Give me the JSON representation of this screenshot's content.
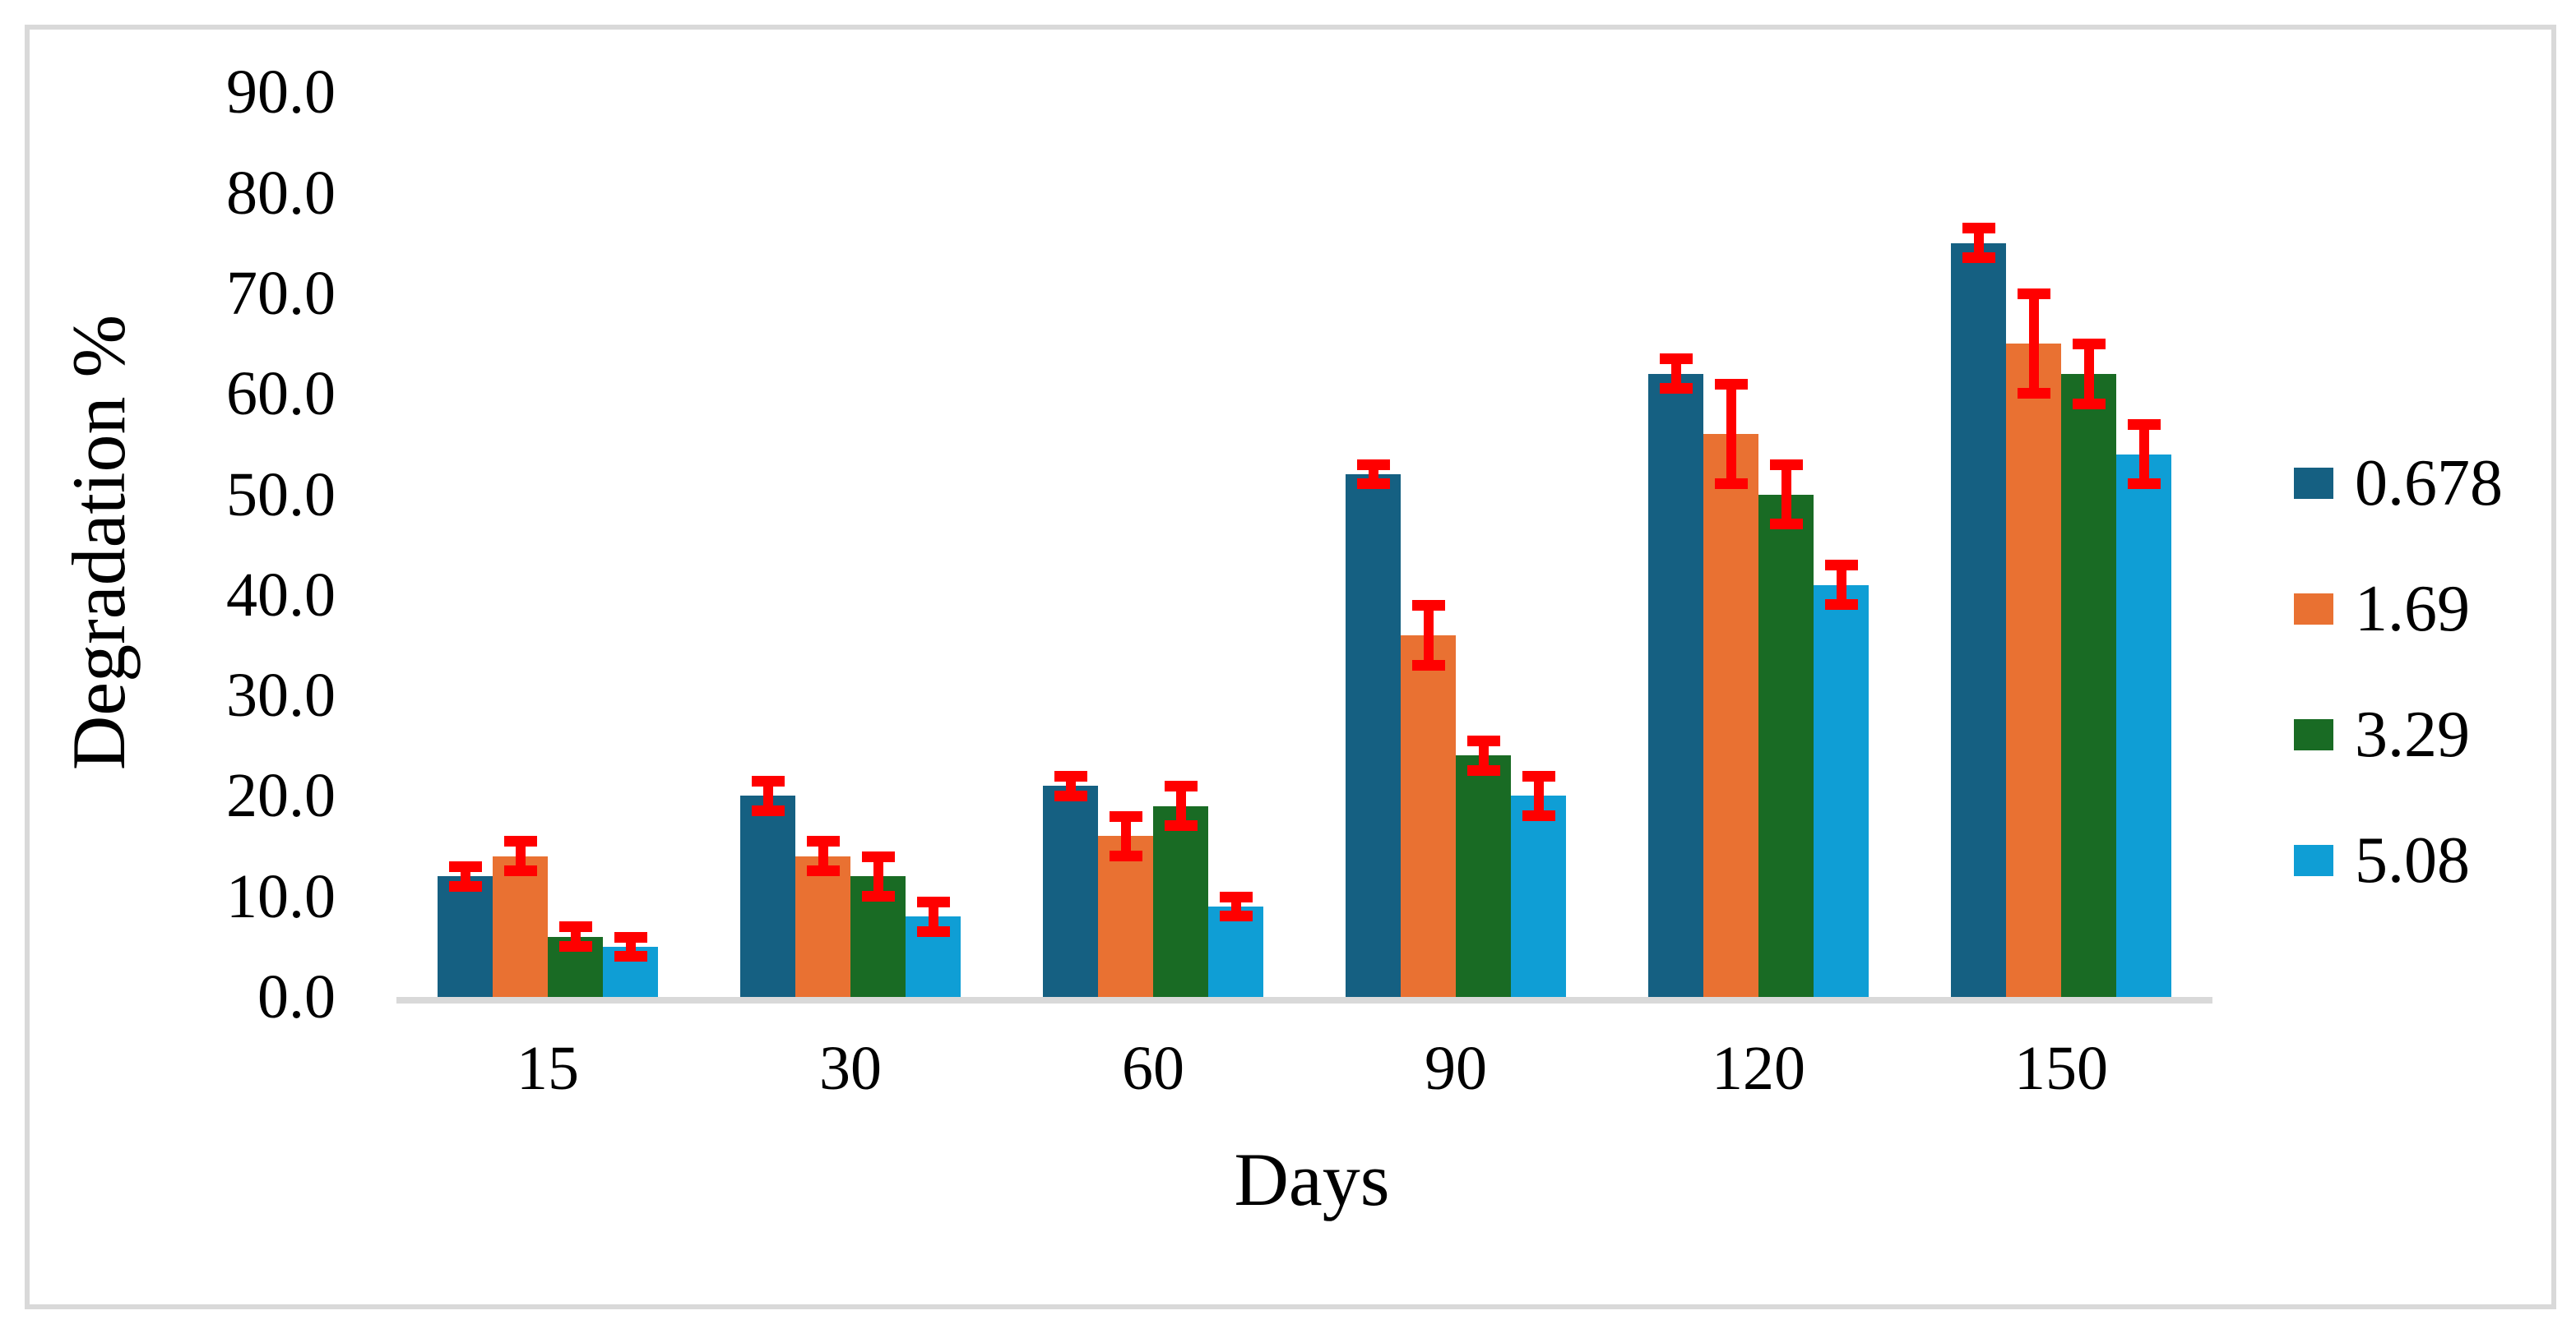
{
  "figure": {
    "background_color": "#ffffff",
    "frame_border_color": "#d9d9d9",
    "axis_line_color": "#d9d9d9",
    "text_color": "#000000"
  },
  "chart_data": {
    "type": "bar",
    "title": "",
    "xlabel": "Days",
    "ylabel": "Degradation %",
    "categories": [
      "15",
      "30",
      "60",
      "90",
      "120",
      "150"
    ],
    "series": [
      {
        "name": "0.678",
        "color": "#156082",
        "values": [
          12,
          20,
          21,
          52,
          62,
          75
        ],
        "errors": [
          1.5,
          2,
          1.5,
          1.5,
          2,
          2
        ]
      },
      {
        "name": "1.69",
        "color": "#E97132",
        "values": [
          14,
          14,
          16,
          36,
          56,
          65
        ],
        "errors": [
          2,
          2,
          2.5,
          3.5,
          5.5,
          5.5
        ]
      },
      {
        "name": "3.29",
        "color": "#196B24",
        "values": [
          6,
          12,
          19,
          24,
          50,
          62
        ],
        "errors": [
          1.5,
          2.5,
          2.5,
          2,
          3.5,
          3.5
        ]
      },
      {
        "name": "5.08",
        "color": "#0F9ED5",
        "values": [
          5,
          8,
          9,
          20,
          41,
          54
        ],
        "errors": [
          1.5,
          2,
          1.5,
          2.5,
          2.5,
          3.5
        ]
      }
    ],
    "error_bar_color": "#FF0000",
    "y_ticks": [
      "90.0",
      "80.0",
      "70.0",
      "60.0",
      "50.0",
      "40.0",
      "30.0",
      "20.0",
      "10.0",
      "0.0"
    ],
    "y_tick_values": [
      90,
      80,
      70,
      60,
      50,
      40,
      30,
      20,
      10,
      0
    ],
    "ylim": [
      0,
      90
    ],
    "grid": false,
    "legend_position": "right"
  }
}
